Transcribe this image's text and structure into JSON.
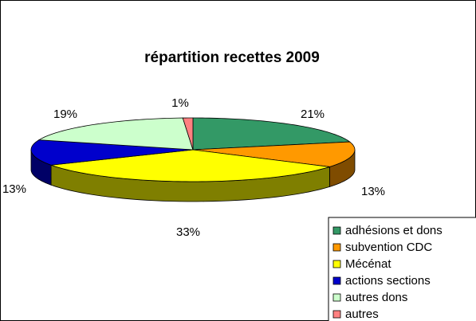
{
  "chart_data": {
    "type": "pie",
    "title": "répartition recettes 2009",
    "categories": [
      "adhésions et dons",
      "subvention CDC",
      "Mécénat",
      "actions sections",
      "autres dons",
      "autres"
    ],
    "values": [
      21,
      13,
      33,
      13,
      19,
      1
    ],
    "value_labels": [
      "21%",
      "13%",
      "33%",
      "13%",
      "19%",
      "1%"
    ],
    "colors": [
      "#339966",
      "#FF9900",
      "#FFFF00",
      "#0000CC",
      "#CCFFCC",
      "#FF8080"
    ],
    "legend": "bottom-right"
  }
}
